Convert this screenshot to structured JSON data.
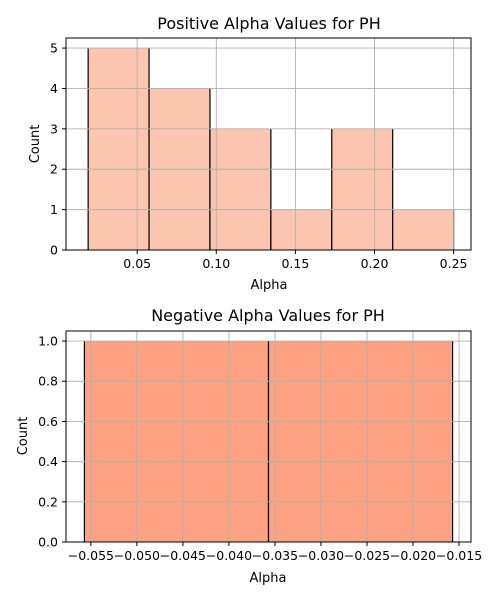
{
  "chart_data": [
    {
      "type": "bar",
      "title": "Positive Alpha Values for PH",
      "xlabel": "Alpha",
      "ylabel": "Count",
      "xlim": [
        0.005,
        0.261
      ],
      "ylim": [
        0,
        5.25
      ],
      "xticks": [
        0.05,
        0.1,
        0.15,
        0.2,
        0.25
      ],
      "xtick_labels": [
        "0.05",
        "0.10",
        "0.15",
        "0.20",
        "0.25"
      ],
      "yticks": [
        0,
        1,
        2,
        3,
        4,
        5
      ],
      "ytick_labels": [
        "0",
        "1",
        "2",
        "3",
        "4",
        "5"
      ],
      "grid": true,
      "bar_color": "#fcc5b0",
      "bins": [
        {
          "x0": 0.019,
          "x1": 0.0575,
          "count": 5
        },
        {
          "x0": 0.0575,
          "x1": 0.096,
          "count": 4
        },
        {
          "x0": 0.096,
          "x1": 0.1345,
          "count": 3
        },
        {
          "x0": 0.1345,
          "x1": 0.173,
          "count": 1
        },
        {
          "x0": 0.173,
          "x1": 0.2115,
          "count": 3
        },
        {
          "x0": 0.2115,
          "x1": 0.25,
          "count": 1
        }
      ]
    },
    {
      "type": "bar",
      "title": "Negative Alpha Values for PH",
      "xlabel": "Alpha",
      "ylabel": "Count",
      "xlim": [
        -0.0577,
        -0.0137
      ],
      "ylim": [
        0,
        1.05
      ],
      "xticks": [
        -0.055,
        -0.05,
        -0.045,
        -0.04,
        -0.035,
        -0.03,
        -0.025,
        -0.02,
        -0.015
      ],
      "xtick_labels": [
        "−0.055",
        "−0.050",
        "−0.045",
        "−0.040",
        "−0.035",
        "−0.030",
        "−0.025",
        "−0.020",
        "−0.015"
      ],
      "yticks": [
        0,
        0.2,
        0.4,
        0.6,
        0.8,
        1.0
      ],
      "ytick_labels": [
        "0.0",
        "0.2",
        "0.4",
        "0.6",
        "0.8",
        "1.0"
      ],
      "grid": true,
      "bar_color": "#fca282",
      "bins": [
        {
          "x0": -0.0557,
          "x1": -0.0357,
          "count": 1
        },
        {
          "x0": -0.0357,
          "x1": -0.0157,
          "count": 1
        }
      ]
    }
  ]
}
